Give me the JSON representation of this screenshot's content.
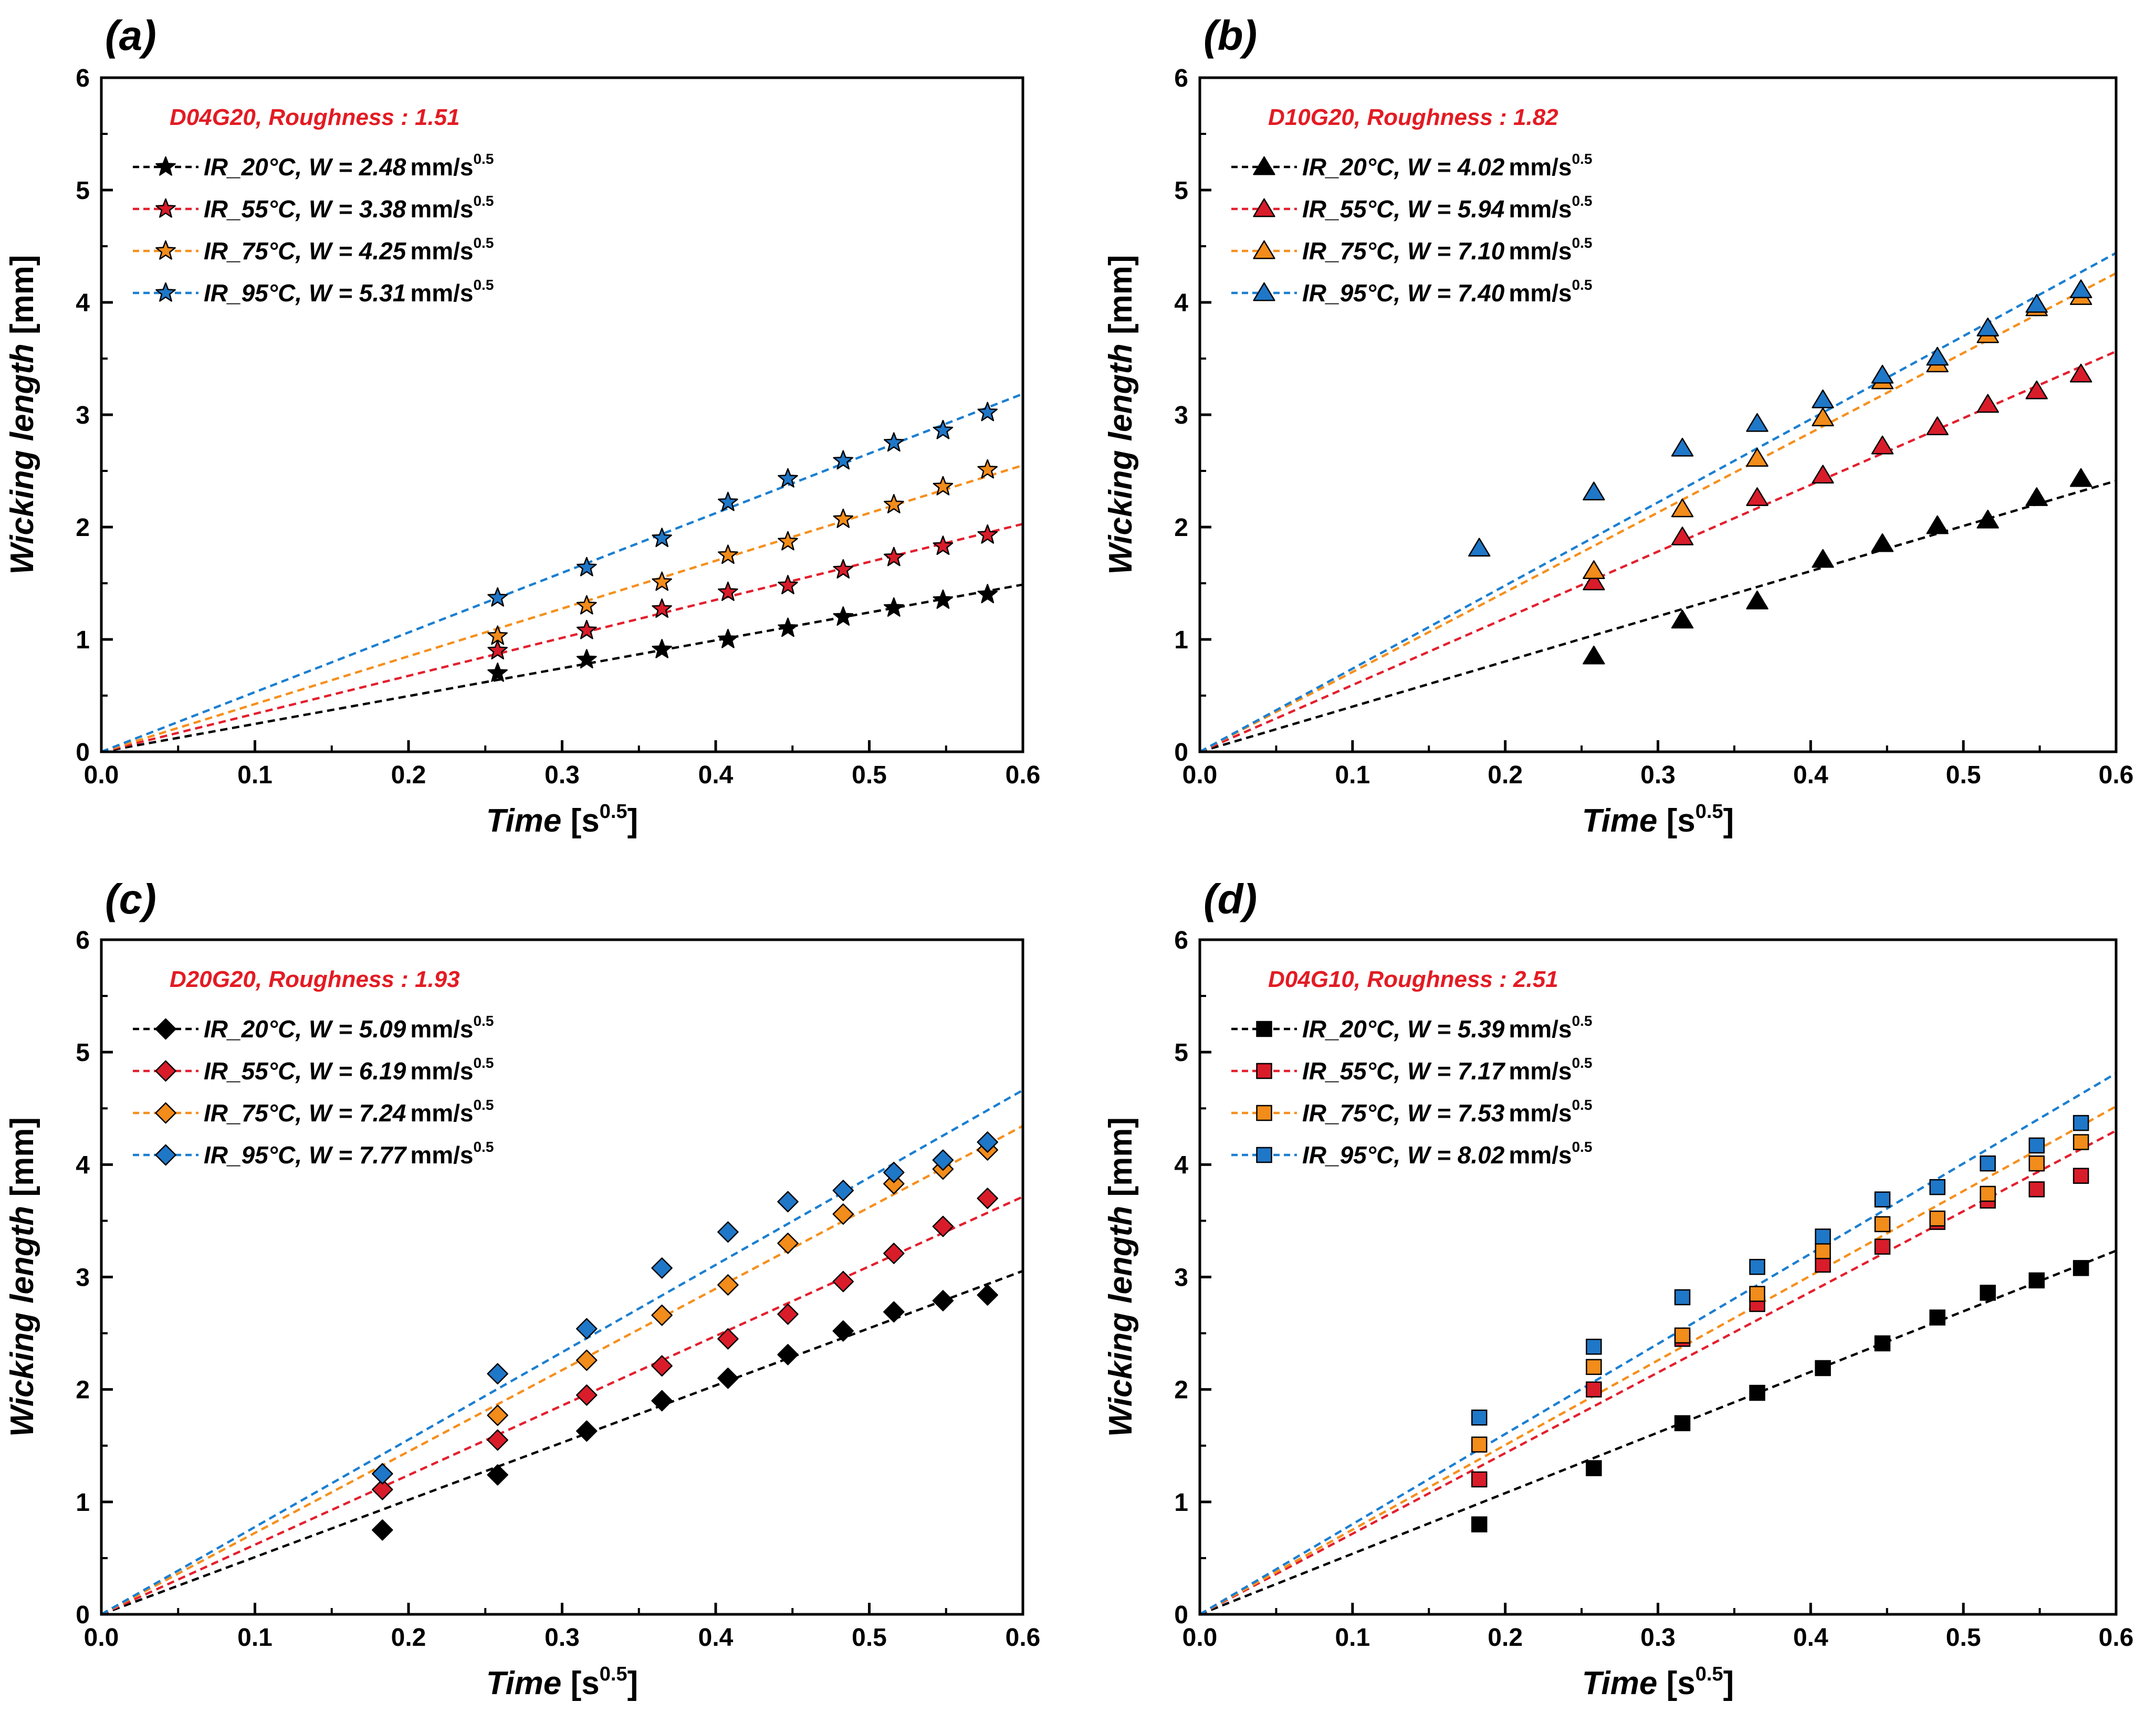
{
  "figure": {
    "colors": {
      "20": "#000000",
      "55": "#d91c2a",
      "75": "#f28c1a",
      "95": "#1f77c8"
    },
    "line_colors": {
      "20": "#000000",
      "55": "#e3202e",
      "75": "#f5901e",
      "95": "#1c7fd0"
    },
    "annotation_color": "#e31b23"
  },
  "chart_data": [
    {
      "panel": "(a)",
      "type": "scatter",
      "marker": "star",
      "annotation": "D04G20, Roughness : 1.51",
      "xlabel_main": "Time",
      "xlabel_unit": "[s",
      "xlabel_sup": "0.5",
      "xlabel_close": "]",
      "ylabel_main": "Wicking length",
      "ylabel_unit": " [mm]",
      "xlim": [
        0,
        0.6
      ],
      "ylim": [
        0,
        6
      ],
      "xticks": [
        "0.0",
        "0.1",
        "0.2",
        "0.3",
        "0.4",
        "0.5",
        "0.6"
      ],
      "yticks": [
        "0",
        "1",
        "2",
        "3",
        "4",
        "5",
        "6"
      ],
      "series": [
        {
          "temp": "20",
          "name_ir": "IR_20°C,",
          "name_w": "W = 2.48",
          "unit": "mm/s",
          "unit_sup": "0.5",
          "slope": 2.48,
          "x": [
            0.258,
            0.316,
            0.365,
            0.408,
            0.447,
            0.483,
            0.516,
            0.548,
            0.577
          ],
          "y": [
            0.7,
            0.82,
            0.91,
            1.0,
            1.1,
            1.2,
            1.28,
            1.35,
            1.4
          ]
        },
        {
          "temp": "55",
          "name_ir": "IR_55°C,",
          "name_w": "W = 3.38",
          "unit": "mm/s",
          "unit_sup": "0.5",
          "slope": 3.38,
          "x": [
            0.258,
            0.316,
            0.365,
            0.408,
            0.447,
            0.483,
            0.516,
            0.548,
            0.577
          ],
          "y": [
            0.9,
            1.08,
            1.27,
            1.42,
            1.48,
            1.62,
            1.73,
            1.83,
            1.93
          ]
        },
        {
          "temp": "75",
          "name_ir": "IR_75°C,",
          "name_w": "W = 4.25",
          "unit": "mm/s",
          "unit_sup": "0.5",
          "slope": 4.25,
          "x": [
            0.258,
            0.316,
            0.365,
            0.408,
            0.447,
            0.483,
            0.516,
            0.548,
            0.577
          ],
          "y": [
            1.03,
            1.3,
            1.51,
            1.75,
            1.87,
            2.07,
            2.2,
            2.36,
            2.51
          ]
        },
        {
          "temp": "95",
          "name_ir": "IR_95°C,",
          "name_w": "W = 5.31",
          "unit": "mm/s",
          "unit_sup": "0.5",
          "slope": 5.31,
          "x": [
            0.258,
            0.316,
            0.365,
            0.408,
            0.447,
            0.483,
            0.516,
            0.548,
            0.577
          ],
          "y": [
            1.37,
            1.64,
            1.9,
            2.22,
            2.43,
            2.59,
            2.75,
            2.86,
            3.02
          ]
        }
      ]
    },
    {
      "panel": "(b)",
      "type": "scatter",
      "marker": "triangle",
      "annotation": "D10G20, Roughness : 1.82",
      "xlabel_main": "Time",
      "xlabel_unit": "[s",
      "xlabel_sup": "0.5",
      "xlabel_close": "]",
      "ylabel_main": "Wicking length",
      "ylabel_unit": " [mm]",
      "xlim": [
        0,
        0.6
      ],
      "ylim": [
        0,
        6
      ],
      "xticks": [
        "0.0",
        "0.1",
        "0.2",
        "0.3",
        "0.4",
        "0.5",
        "0.6"
      ],
      "yticks": [
        "0",
        "1",
        "2",
        "3",
        "4",
        "5",
        "6"
      ],
      "series": [
        {
          "temp": "20",
          "name_ir": "IR_20°C,",
          "name_w": "W = 4.02",
          "unit": "mm/s",
          "unit_sup": "0.5",
          "slope": 4.02,
          "x": [
            0.258,
            0.316,
            0.365,
            0.408,
            0.447,
            0.483,
            0.516,
            0.548,
            0.577
          ],
          "y": [
            0.85,
            1.17,
            1.34,
            1.71,
            1.85,
            2.01,
            2.06,
            2.26,
            2.43
          ]
        },
        {
          "temp": "55",
          "name_ir": "IR_55°C,",
          "name_w": "W = 5.94",
          "unit": "mm/s",
          "unit_sup": "0.5",
          "slope": 5.94,
          "x": [
            0.258,
            0.316,
            0.365,
            0.408,
            0.447,
            0.483,
            0.516,
            0.548,
            0.577
          ],
          "y": [
            1.51,
            1.91,
            2.26,
            2.46,
            2.72,
            2.89,
            3.09,
            3.21,
            3.36
          ]
        },
        {
          "temp": "75",
          "name_ir": "IR_75°C,",
          "name_w": "W = 7.10",
          "unit": "mm/s",
          "unit_sup": "0.5",
          "slope": 7.1,
          "x": [
            0.258,
            0.316,
            0.365,
            0.408,
            0.447,
            0.483,
            0.516,
            0.548,
            0.577
          ],
          "y": [
            1.61,
            2.16,
            2.61,
            2.97,
            3.3,
            3.45,
            3.71,
            3.95,
            4.05
          ]
        },
        {
          "temp": "95",
          "name_ir": "IR_95°C,",
          "name_w": "W = 7.40",
          "unit": "mm/s",
          "unit_sup": "0.5",
          "slope": 7.4,
          "x": [
            0.183,
            0.258,
            0.316,
            0.365,
            0.408,
            0.447,
            0.483,
            0.516,
            0.548,
            0.577
          ],
          "y": [
            1.81,
            2.31,
            2.7,
            2.92,
            3.13,
            3.35,
            3.51,
            3.77,
            3.98,
            4.11
          ]
        }
      ]
    },
    {
      "panel": "(c)",
      "type": "scatter",
      "marker": "diamond",
      "annotation": "D20G20, Roughness : 1.93",
      "xlabel_main": "Time",
      "xlabel_unit": "[s",
      "xlabel_sup": "0.5",
      "xlabel_close": "]",
      "ylabel_main": "Wicking length",
      "ylabel_unit": " [mm]",
      "xlim": [
        0,
        0.6
      ],
      "ylim": [
        0,
        6
      ],
      "xticks": [
        "0.0",
        "0.1",
        "0.2",
        "0.3",
        "0.4",
        "0.5",
        "0.6"
      ],
      "yticks": [
        "0",
        "1",
        "2",
        "3",
        "4",
        "5",
        "6"
      ],
      "series": [
        {
          "temp": "20",
          "name_ir": "IR_20°C,",
          "name_w": "W = 5.09",
          "unit": "mm/s",
          "unit_sup": "0.5",
          "slope": 5.09,
          "x": [
            0.183,
            0.258,
            0.316,
            0.365,
            0.408,
            0.447,
            0.483,
            0.516,
            0.548,
            0.577
          ],
          "y": [
            0.75,
            1.24,
            1.63,
            1.9,
            2.1,
            2.31,
            2.52,
            2.69,
            2.79,
            2.84
          ]
        },
        {
          "temp": "55",
          "name_ir": "IR_55°C,",
          "name_w": "W = 6.19",
          "unit": "mm/s",
          "unit_sup": "0.5",
          "slope": 6.19,
          "x": [
            0.183,
            0.258,
            0.316,
            0.365,
            0.408,
            0.447,
            0.483,
            0.516,
            0.548,
            0.577
          ],
          "y": [
            1.11,
            1.55,
            1.95,
            2.21,
            2.45,
            2.67,
            2.96,
            3.21,
            3.45,
            3.7
          ]
        },
        {
          "temp": "75",
          "name_ir": "IR_75°C,",
          "name_w": "W = 7.24",
          "unit": "mm/s",
          "unit_sup": "0.5",
          "slope": 7.24,
          "x": [
            0.183,
            0.258,
            0.316,
            0.365,
            0.408,
            0.447,
            0.483,
            0.516,
            0.548,
            0.577
          ],
          "y": [
            1.25,
            1.77,
            2.26,
            2.66,
            2.93,
            3.3,
            3.56,
            3.83,
            3.96,
            4.13
          ]
        },
        {
          "temp": "95",
          "name_ir": "IR_95°C,",
          "name_w": "W = 7.77",
          "unit": "mm/s",
          "unit_sup": "0.5",
          "slope": 7.77,
          "x": [
            0.183,
            0.258,
            0.316,
            0.365,
            0.408,
            0.447,
            0.483,
            0.516,
            0.548,
            0.577
          ],
          "y": [
            1.25,
            2.14,
            2.54,
            3.08,
            3.4,
            3.67,
            3.77,
            3.93,
            4.04,
            4.2
          ]
        }
      ]
    },
    {
      "panel": "(d)",
      "type": "scatter",
      "marker": "square",
      "annotation": "D04G10, Roughness : 2.51",
      "xlabel_main": "Time",
      "xlabel_unit": "[s",
      "xlabel_sup": "0.5",
      "xlabel_close": "]",
      "ylabel_main": "Wicking length",
      "ylabel_unit": " [mm]",
      "xlim": [
        0,
        0.6
      ],
      "ylim": [
        0,
        6
      ],
      "xticks": [
        "0.0",
        "0.1",
        "0.2",
        "0.3",
        "0.4",
        "0.5",
        "0.6"
      ],
      "yticks": [
        "0",
        "1",
        "2",
        "3",
        "4",
        "5",
        "6"
      ],
      "series": [
        {
          "temp": "20",
          "name_ir": "IR_20°C,",
          "name_w": "W = 5.39",
          "unit": "mm/s",
          "unit_sup": "0.5",
          "slope": 5.39,
          "x": [
            0.183,
            0.258,
            0.316,
            0.365,
            0.408,
            0.447,
            0.483,
            0.516,
            0.548,
            0.577
          ],
          "y": [
            0.8,
            1.3,
            1.7,
            1.97,
            2.19,
            2.41,
            2.64,
            2.86,
            2.97,
            3.08
          ]
        },
        {
          "temp": "55",
          "name_ir": "IR_55°C,",
          "name_w": "W = 7.17",
          "unit": "mm/s",
          "unit_sup": "0.5",
          "slope": 7.17,
          "x": [
            0.183,
            0.258,
            0.316,
            0.365,
            0.408,
            0.447,
            0.483,
            0.516,
            0.548,
            0.577
          ],
          "y": [
            1.2,
            2.0,
            2.45,
            2.76,
            3.11,
            3.27,
            3.49,
            3.68,
            3.78,
            3.9
          ]
        },
        {
          "temp": "75",
          "name_ir": "IR_75°C,",
          "name_w": "W = 7.53",
          "unit": "mm/s",
          "unit_sup": "0.5",
          "slope": 7.53,
          "x": [
            0.183,
            0.258,
            0.316,
            0.365,
            0.408,
            0.447,
            0.483,
            0.516,
            0.548,
            0.577
          ],
          "y": [
            1.51,
            2.2,
            2.48,
            2.85,
            3.23,
            3.47,
            3.52,
            3.74,
            4.01,
            4.2
          ]
        },
        {
          "temp": "95",
          "name_ir": "IR_95°C,",
          "name_w": "W = 8.02",
          "unit": "mm/s",
          "unit_sup": "0.5",
          "slope": 8.02,
          "x": [
            0.183,
            0.258,
            0.316,
            0.365,
            0.408,
            0.447,
            0.483,
            0.516,
            0.548,
            0.577
          ],
          "y": [
            1.75,
            2.38,
            2.82,
            3.09,
            3.36,
            3.69,
            3.8,
            4.01,
            4.17,
            4.37
          ]
        }
      ]
    }
  ]
}
